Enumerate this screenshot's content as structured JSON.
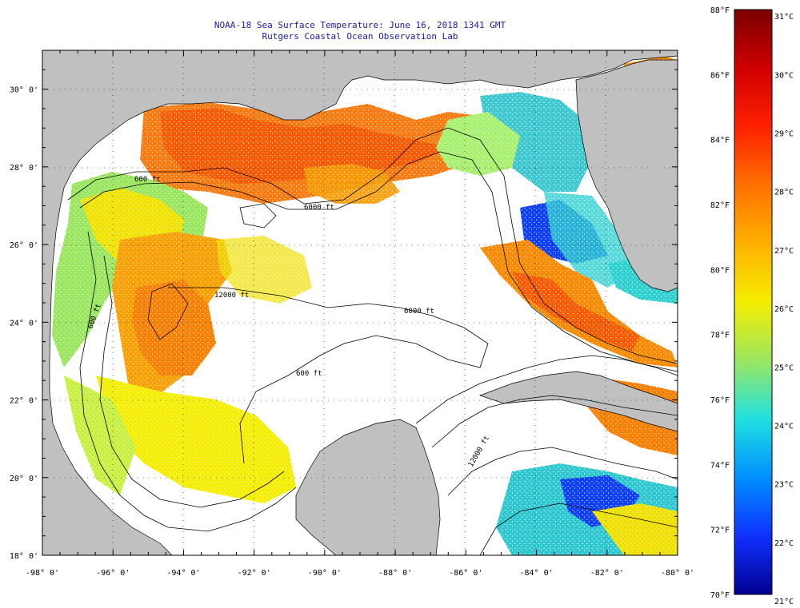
{
  "title": {
    "line1": "NOAA-18 Sea Surface Temperature:  June 16, 2018 1341 GMT",
    "line2": "Rutgers Coastal Ocean Observation Lab"
  },
  "map": {
    "lat_labels": [
      "30° 0'",
      "28° 0'",
      "26° 0'",
      "24° 0'",
      "22° 0'",
      "20° 0'",
      "18° 0'"
    ],
    "lon_labels": [
      "-98° 0'",
      "-96° 0'",
      "-94° 0'",
      "-92° 0'",
      "-90° 0'",
      "-88° 0'",
      "-86° 0'",
      "-84° 0'",
      "-82° 0'",
      "-80° 0'"
    ],
    "lat_range": [
      18,
      31
    ],
    "lon_range": [
      -98,
      -80
    ],
    "contour_labels": [
      "600 ft",
      "6000 ft",
      "12000 ft",
      "6000 ft",
      "600 ft",
      "600 ft",
      "12000 ft"
    ],
    "land_color": "#c0c0c0",
    "cloud_color": "#ffffff"
  },
  "colorbar": {
    "f_labels": [
      "88°F",
      "86°F",
      "84°F",
      "82°F",
      "80°F",
      "78°F",
      "76°F",
      "74°F",
      "72°F",
      "70°F"
    ],
    "c_labels": [
      "31°C",
      "30°C",
      "29°C",
      "28°C",
      "27°C",
      "26°C",
      "25°C",
      "24°C",
      "23°C",
      "22°C",
      "21°C"
    ],
    "colors": [
      "#7a0000",
      "#e00000",
      "#ff5a00",
      "#ffa000",
      "#f5ee00",
      "#b0f050",
      "#30e0d0",
      "#00a0ff",
      "#1040ff",
      "#000090"
    ]
  }
}
